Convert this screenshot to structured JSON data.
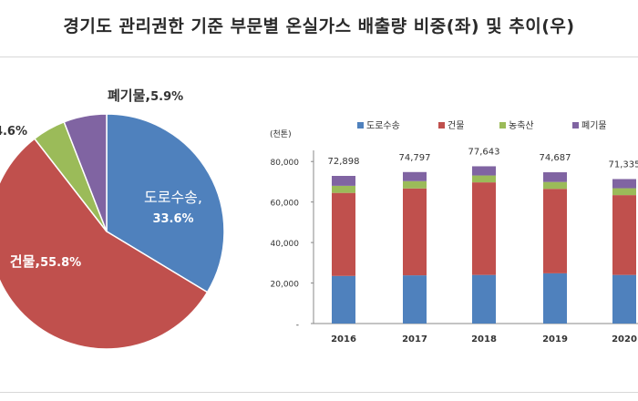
{
  "title": "경기도 관리권한 기준 부문별 온실가스 배출량 비중(좌) 및 추이(우)",
  "chart_data": [
    {
      "type": "pie",
      "slices": [
        {
          "name": "도로수송",
          "value": 33.6,
          "label": "도로수송,",
          "pct_label": "33.6%",
          "color": "#4f81bd"
        },
        {
          "name": "건물",
          "value": 55.8,
          "label": "건물,",
          "pct_label": "55.8%",
          "color": "#c0504d"
        },
        {
          "name": "농축산",
          "value": 4.6,
          "label": "농축산,",
          "pct_label": "4.6%",
          "color": "#9bbb59"
        },
        {
          "name": "폐기물",
          "value": 5.9,
          "label": "폐기물,",
          "pct_label": "5.9%",
          "color": "#8064a2"
        }
      ]
    },
    {
      "type": "bar",
      "stacked": true,
      "unit_label": "(천톤)",
      "categories": [
        "2016",
        "2017",
        "2018",
        "2019",
        "2020"
      ],
      "series": [
        {
          "name": "도로수송",
          "color": "#4f81bd",
          "values": [
            23500,
            23800,
            24000,
            24800,
            24000
          ]
        },
        {
          "name": "건물",
          "color": "#c0504d",
          "values": [
            41000,
            42900,
            45700,
            41700,
            39400
          ]
        },
        {
          "name": "농축산",
          "color": "#9bbb59",
          "values": [
            3500,
            3600,
            3400,
            3400,
            3400
          ]
        },
        {
          "name": "폐기물",
          "color": "#8064a2",
          "values": [
            4898,
            4497,
            4543,
            4787,
            4535
          ]
        }
      ],
      "totals": [
        "72,898",
        "74,797",
        "77,643",
        "74,687",
        "71,335"
      ],
      "yticks": [
        0,
        20000,
        40000,
        60000,
        80000
      ],
      "ytick_labels": [
        "-",
        "20,000",
        "40,000",
        "60,000",
        "80,000"
      ],
      "ylim": [
        0,
        90000
      ],
      "legend_position": "top",
      "grid": false
    }
  ]
}
